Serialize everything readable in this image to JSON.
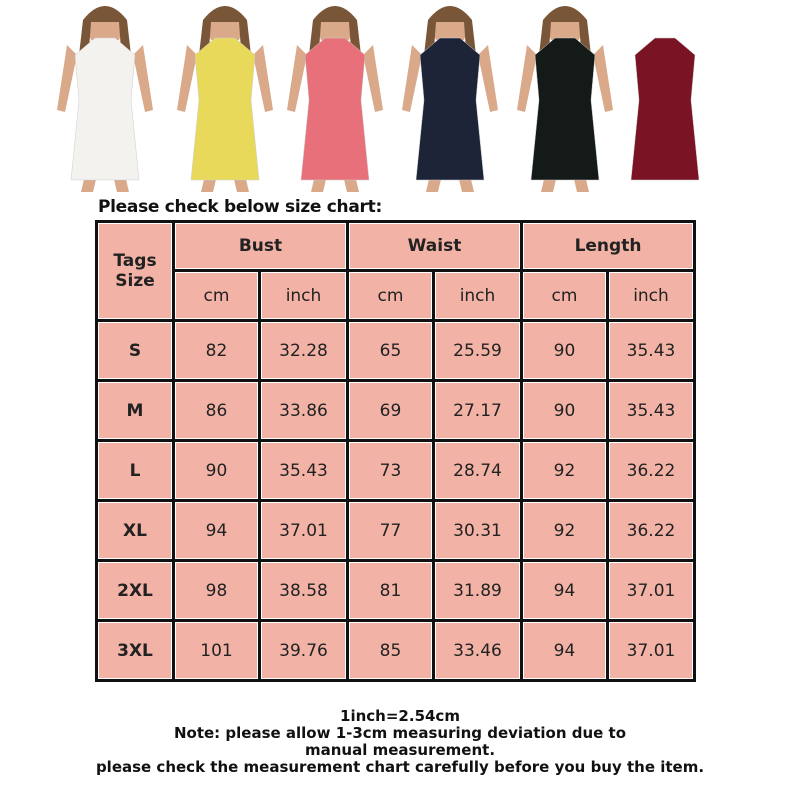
{
  "photos": {
    "dress_colors": [
      "#f4f2ee",
      "#e9d95a",
      "#e8707a",
      "#1d2438",
      "#141a18",
      "#7a1424"
    ],
    "icon": "product-photo-strip"
  },
  "title": "Please check below size chart:",
  "table": {
    "size_header": "Tags Size",
    "groups": [
      "Bust",
      "Waist",
      "Length"
    ],
    "units": [
      "cm",
      "inch",
      "cm",
      "inch",
      "cm",
      "inch"
    ],
    "rows": [
      {
        "size": "S",
        "values": [
          "82",
          "32.28",
          "65",
          "25.59",
          "90",
          "35.43"
        ]
      },
      {
        "size": "M",
        "values": [
          "86",
          "33.86",
          "69",
          "27.17",
          "90",
          "35.43"
        ]
      },
      {
        "size": "L",
        "values": [
          "90",
          "35.43",
          "73",
          "28.74",
          "92",
          "36.22"
        ]
      },
      {
        "size": "XL",
        "values": [
          "94",
          "37.01",
          "77",
          "30.31",
          "92",
          "36.22"
        ]
      },
      {
        "size": "2XL",
        "values": [
          "98",
          "38.58",
          "81",
          "31.89",
          "94",
          "37.01"
        ]
      },
      {
        "size": "3XL",
        "values": [
          "101",
          "39.76",
          "85",
          "33.46",
          "94",
          "37.01"
        ]
      }
    ],
    "colors": {
      "cell": "#f2b3a6",
      "border": "#111111"
    }
  },
  "notes": [
    "1inch=2.54cm",
    "Note: please allow 1-3cm measuring deviation due to manual measurement.",
    "please check the measurement chart carefully before you buy the item."
  ]
}
